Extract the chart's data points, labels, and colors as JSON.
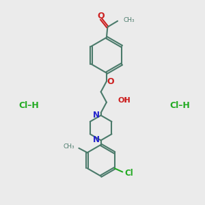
{
  "background_color": "#ebebeb",
  "bond_color": "#4a7a6a",
  "bond_width": 1.5,
  "N_color": "#2020cc",
  "O_color": "#cc2020",
  "Cl_color": "#22aa22",
  "figsize": [
    3.0,
    3.0
  ],
  "dpi": 100,
  "xlim": [
    0,
    10
  ],
  "ylim": [
    0,
    10
  ]
}
